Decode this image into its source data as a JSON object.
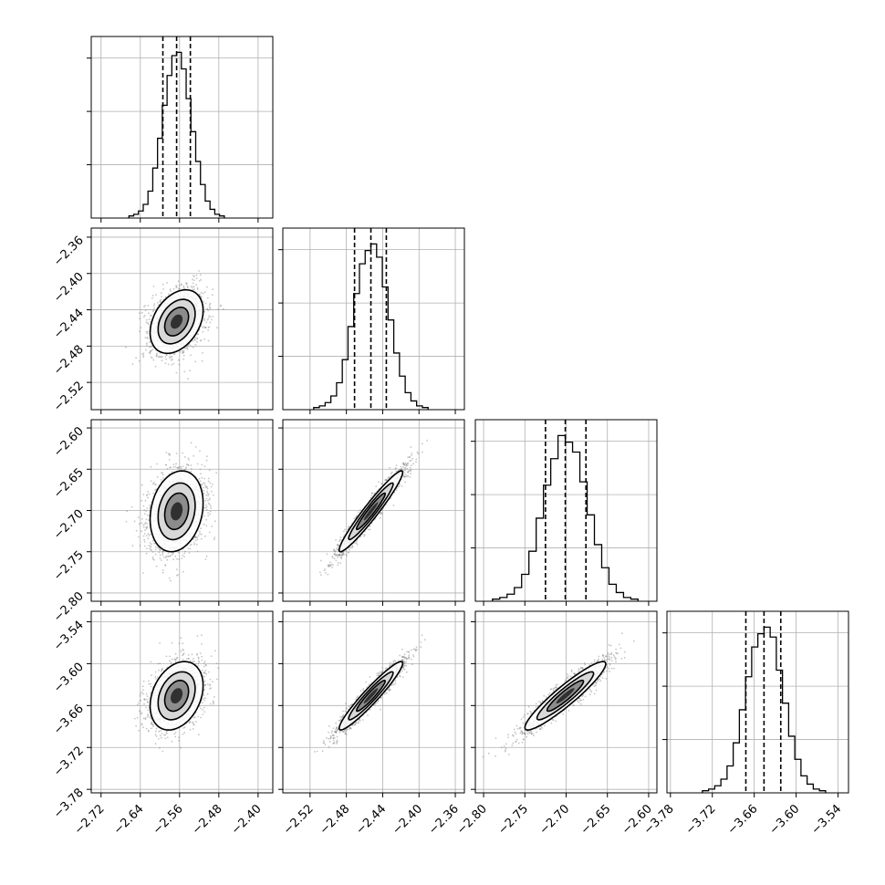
{
  "chart_data": {
    "type": "corner",
    "title": "",
    "legend": "none",
    "grid": true,
    "colors": {
      "axes": "#000000",
      "grid": "#b0b0b0",
      "samples": "#808080",
      "density": "#000000"
    },
    "parameters": [
      {
        "index": 0,
        "range": [
          -2.74,
          -2.37
        ],
        "ticks": [
          "−2.72",
          "−2.64",
          "−2.56",
          "−2.48",
          "−2.40"
        ],
        "tick_values": [
          -2.72,
          -2.64,
          -2.56,
          -2.48,
          -2.4
        ],
        "mean": -2.566,
        "sigma": 0.027,
        "quantiles": [
          -2.594,
          -2.566,
          -2.538
        ]
      },
      {
        "index": 1,
        "range": [
          -2.55,
          -2.35
        ],
        "ticks": [
          "−2.52",
          "−2.48",
          "−2.44",
          "−2.40",
          "−2.36"
        ],
        "tick_values": [
          -2.52,
          -2.48,
          -2.44,
          -2.4,
          -2.36
        ],
        "mean": -2.453,
        "sigma": 0.0175,
        "quantiles": [
          -2.471,
          -2.453,
          -2.436
        ]
      },
      {
        "index": 2,
        "range": [
          -2.81,
          -2.59
        ],
        "ticks": [
          "−2.80",
          "−2.75",
          "−2.70",
          "−2.65",
          "−2.60"
        ],
        "tick_values": [
          -2.8,
          -2.75,
          -2.7,
          -2.65,
          -2.6
        ],
        "mean": -2.701,
        "sigma": 0.0245,
        "quantiles": [
          -2.725,
          -2.701,
          -2.676
        ]
      },
      {
        "index": 3,
        "range": [
          -3.785,
          -3.525
        ],
        "ticks": [
          "−3.78",
          "−3.72",
          "−3.66",
          "−3.60",
          "−3.54"
        ],
        "tick_values": [
          -3.78,
          -3.72,
          -3.66,
          -3.6,
          -3.54
        ],
        "mean": -3.646,
        "sigma": 0.0245,
        "quantiles": [
          -3.672,
          -3.646,
          -3.622
        ]
      }
    ],
    "histograms": [
      {
        "param": 0,
        "bins_relative_heights": [
          0.01,
          0.02,
          0.04,
          0.08,
          0.16,
          0.3,
          0.48,
          0.68,
          0.86,
          0.98,
          1.0,
          0.9,
          0.72,
          0.52,
          0.34,
          0.2,
          0.1,
          0.05,
          0.02,
          0.01
        ]
      },
      {
        "param": 1,
        "bins_relative_heights": [
          0.01,
          0.02,
          0.04,
          0.08,
          0.16,
          0.3,
          0.5,
          0.7,
          0.88,
          0.96,
          1.0,
          0.92,
          0.74,
          0.54,
          0.34,
          0.2,
          0.1,
          0.05,
          0.02,
          0.01
        ]
      },
      {
        "param": 2,
        "bins_relative_heights": [
          0.01,
          0.02,
          0.04,
          0.08,
          0.16,
          0.3,
          0.5,
          0.7,
          0.86,
          1.0,
          0.96,
          0.9,
          0.72,
          0.52,
          0.34,
          0.2,
          0.1,
          0.05,
          0.02,
          0.01
        ]
      },
      {
        "param": 3,
        "bins_relative_heights": [
          0.01,
          0.02,
          0.04,
          0.08,
          0.16,
          0.3,
          0.5,
          0.7,
          0.88,
          0.96,
          1.0,
          0.94,
          0.74,
          0.54,
          0.34,
          0.2,
          0.1,
          0.05,
          0.02,
          0.01
        ]
      }
    ],
    "correlations": [
      {
        "x": 0,
        "y": 1,
        "rho": 0.35
      },
      {
        "x": 0,
        "y": 2,
        "rho": 0.2
      },
      {
        "x": 1,
        "y": 2,
        "rho": 0.96
      },
      {
        "x": 0,
        "y": 3,
        "rho": 0.3
      },
      {
        "x": 1,
        "y": 3,
        "rho": 0.95
      },
      {
        "x": 2,
        "y": 3,
        "rho": 0.93
      }
    ]
  }
}
